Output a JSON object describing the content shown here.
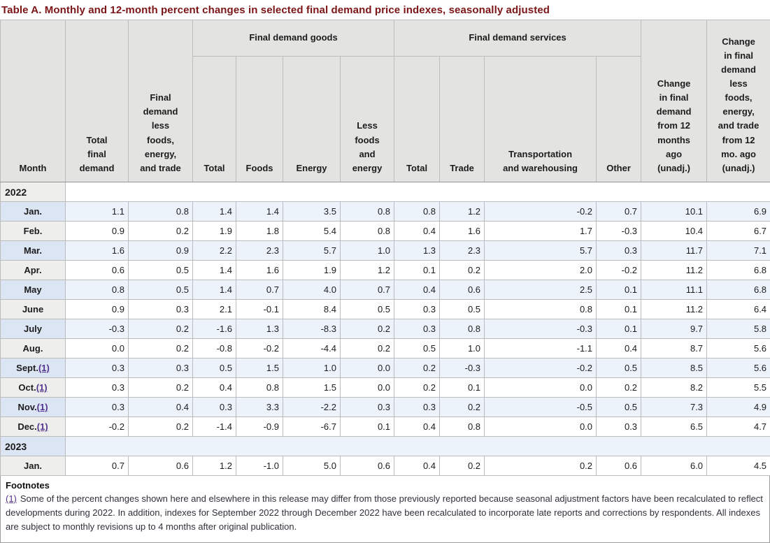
{
  "title": "Table A. Monthly and 12-month percent changes in selected final demand price indexes, seasonally adjusted",
  "colors": {
    "title_text": "#7c1517",
    "header_bg": "#e3e3e1",
    "row_shaded": "#edf3fb",
    "month_shaded": "#dbe5f3",
    "month_plain": "#eeeeec",
    "link": "#53338f",
    "border_outer": "#9c9c9c",
    "border_inner": "#bcbcbc"
  },
  "table": {
    "groups": {
      "goods": "Final demand goods",
      "services": "Final demand services"
    },
    "columns": {
      "month": "Month",
      "total_final_demand": "Total final demand",
      "final_demand_less_fet": "Final demand less foods, energy, and trade",
      "goods_total": "Total",
      "goods_foods": "Foods",
      "goods_energy": "Energy",
      "goods_less_fe": "Less foods and energy",
      "services_total": "Total",
      "services_trade": "Trade",
      "services_transportation": "Transportation and warehousing",
      "services_other": "Other",
      "change_12mo": "Change in final demand from 12 months ago (unadj.)",
      "change_12mo_less": "Change in final demand less foods, energy, and trade from 12 mo. ago (unadj.)"
    },
    "rows": [
      {
        "section": true,
        "label": "2022"
      },
      {
        "label": "Jan.",
        "values": [
          "1.1",
          "0.8",
          "1.4",
          "1.4",
          "3.5",
          "0.8",
          "0.8",
          "1.2",
          "-0.2",
          "0.7",
          "10.1",
          "6.9"
        ]
      },
      {
        "label": "Feb.",
        "values": [
          "0.9",
          "0.2",
          "1.9",
          "1.8",
          "5.4",
          "0.8",
          "0.4",
          "1.6",
          "1.7",
          "-0.3",
          "10.4",
          "6.7"
        ]
      },
      {
        "label": "Mar.",
        "values": [
          "1.6",
          "0.9",
          "2.2",
          "2.3",
          "5.7",
          "1.0",
          "1.3",
          "2.3",
          "5.7",
          "0.3",
          "11.7",
          "7.1"
        ]
      },
      {
        "label": "Apr.",
        "values": [
          "0.6",
          "0.5",
          "1.4",
          "1.6",
          "1.9",
          "1.2",
          "0.1",
          "0.2",
          "2.0",
          "-0.2",
          "11.2",
          "6.8"
        ]
      },
      {
        "label": "May",
        "values": [
          "0.8",
          "0.5",
          "1.4",
          "0.7",
          "4.0",
          "0.7",
          "0.4",
          "0.6",
          "2.5",
          "0.1",
          "11.1",
          "6.8"
        ]
      },
      {
        "label": "June",
        "values": [
          "0.9",
          "0.3",
          "2.1",
          "-0.1",
          "8.4",
          "0.5",
          "0.3",
          "0.5",
          "0.8",
          "0.1",
          "11.2",
          "6.4"
        ]
      },
      {
        "label": "July",
        "values": [
          "-0.3",
          "0.2",
          "-1.6",
          "1.3",
          "-8.3",
          "0.2",
          "0.3",
          "0.8",
          "-0.3",
          "0.1",
          "9.7",
          "5.8"
        ]
      },
      {
        "label": "Aug.",
        "values": [
          "0.0",
          "0.2",
          "-0.8",
          "-0.2",
          "-4.4",
          "0.2",
          "0.5",
          "1.0",
          "-1.1",
          "0.4",
          "8.7",
          "5.6"
        ]
      },
      {
        "label": "Sept.",
        "footnote_marker": "(1)",
        "values": [
          "0.3",
          "0.3",
          "0.5",
          "1.5",
          "1.0",
          "0.0",
          "0.2",
          "-0.3",
          "-0.2",
          "0.5",
          "8.5",
          "5.6"
        ]
      },
      {
        "label": "Oct.",
        "footnote_marker": "(1)",
        "values": [
          "0.3",
          "0.2",
          "0.4",
          "0.8",
          "1.5",
          "0.0",
          "0.2",
          "0.1",
          "0.0",
          "0.2",
          "8.2",
          "5.5"
        ]
      },
      {
        "label": "Nov.",
        "footnote_marker": "(1)",
        "values": [
          "0.3",
          "0.4",
          "0.3",
          "3.3",
          "-2.2",
          "0.3",
          "0.3",
          "0.2",
          "-0.5",
          "0.5",
          "7.3",
          "4.9"
        ]
      },
      {
        "label": "Dec.",
        "footnote_marker": "(1)",
        "values": [
          "-0.2",
          "0.2",
          "-1.4",
          "-0.9",
          "-6.7",
          "0.1",
          "0.4",
          "0.8",
          "0.0",
          "0.3",
          "6.5",
          "4.7"
        ]
      },
      {
        "section": true,
        "label": "2023"
      },
      {
        "label": "Jan.",
        "values": [
          "0.7",
          "0.6",
          "1.2",
          "-1.0",
          "5.0",
          "0.6",
          "0.4",
          "0.2",
          "0.2",
          "0.6",
          "6.0",
          "4.5"
        ]
      }
    ]
  },
  "footnotes": {
    "title": "Footnotes",
    "items": [
      {
        "marker": "(1)",
        "text": "Some of the percent changes shown here and elsewhere in this release may differ from those previously reported because seasonal adjustment factors have been recalculated to reflect developments during 2022. In addition, indexes for September 2022 through December 2022 have been recalculated to incorporate late reports and corrections by respondents. All indexes are subject to monthly revisions up to 4 months after original publication."
      }
    ]
  }
}
